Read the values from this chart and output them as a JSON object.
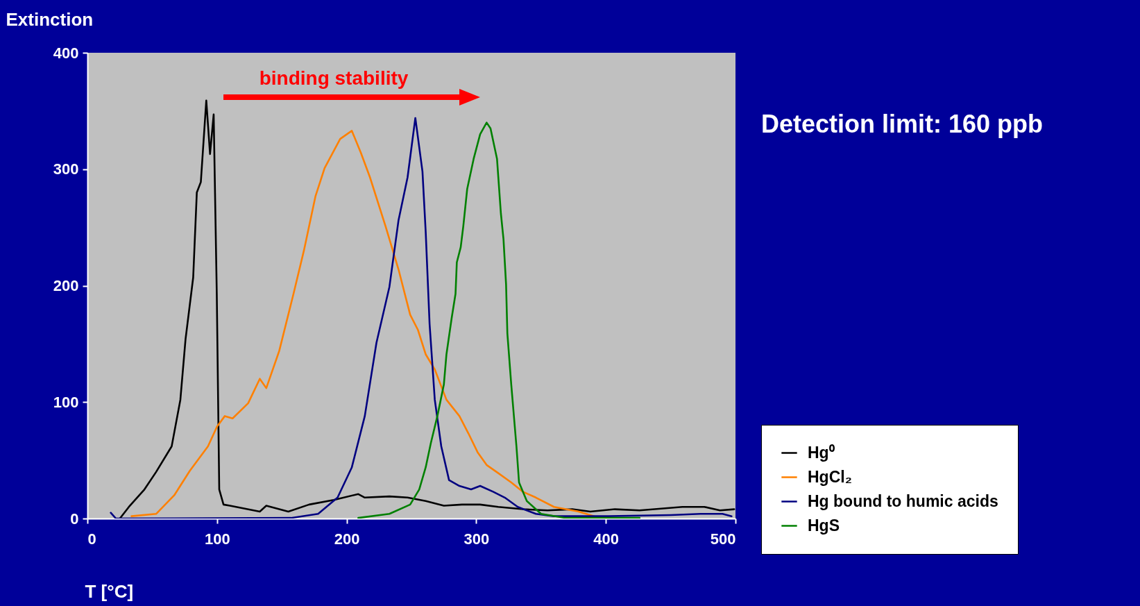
{
  "chart_data": {
    "type": "line",
    "xlabel": "T [°C]",
    "ylabel": "Extinction",
    "xlim": [
      0,
      500
    ],
    "xticks": [
      0,
      100,
      200,
      300,
      400,
      500
    ],
    "ylim": [
      0,
      400
    ],
    "yticks": [
      0,
      100,
      200,
      300,
      400
    ],
    "legend": "bottom right",
    "annotations": [
      "binding stability",
      "Detection limit: 160 ppb"
    ],
    "series": [
      {
        "name": "Hg⁰",
        "color": "#000000",
        "x": [
          25,
          32,
          44,
          53,
          65,
          71.7,
          75.7,
          81.6,
          84.4,
          87.5,
          91.7,
          94.6,
          97.4,
          99.8,
          101.7,
          105,
          110,
          133,
          138,
          155,
          171,
          190,
          209,
          214,
          233,
          247,
          261,
          275,
          289,
          303,
          317,
          336,
          355,
          374,
          388,
          407,
          426,
          459,
          476,
          488,
          499
        ],
        "values": [
          0,
          10,
          25,
          40,
          62,
          102,
          154,
          207,
          280,
          289,
          359,
          313,
          347,
          193,
          25,
          12,
          11,
          6,
          11,
          6,
          12,
          16,
          21,
          18,
          19,
          18,
          15,
          11,
          12,
          12,
          10,
          8,
          7,
          8,
          6,
          8,
          7,
          10,
          10,
          7,
          8
        ]
      },
      {
        "name": "HgCl₂",
        "color": "#ff8000",
        "x": [
          34,
          53,
          67,
          79,
          93,
          100,
          106,
          112,
          124,
          133,
          138,
          148,
          159,
          167,
          176,
          183,
          195,
          204,
          211,
          218,
          230,
          240,
          249,
          255,
          261,
          268,
          277,
          287,
          294,
          301,
          308,
          317,
          327,
          336,
          346,
          360,
          379,
          391
        ],
        "values": [
          2,
          4,
          20,
          41,
          62,
          79,
          88,
          86,
          99,
          120,
          112,
          144,
          193,
          230,
          277,
          301,
          326,
          333,
          314,
          293,
          251,
          214,
          175,
          162,
          141,
          128,
          102,
          88,
          73,
          57,
          46,
          39,
          31,
          23,
          18,
          10,
          6,
          2
        ]
      },
      {
        "name": "Hg bound to humic acids",
        "color": "#000080",
        "x": [
          18,
          22,
          157,
          178,
          193,
          204,
          214,
          223,
          233,
          240,
          247,
          253,
          258.5,
          261,
          264,
          268,
          273,
          279,
          287,
          296,
          303,
          313,
          322,
          332,
          346,
          360,
          402,
          450,
          473,
          490,
          497
        ],
        "values": [
          5,
          0,
          0.5,
          4,
          18,
          44,
          88,
          151,
          199,
          256,
          293,
          344,
          298,
          246,
          167,
          102,
          62,
          33,
          28,
          25,
          28,
          23,
          18,
          10,
          4,
          2,
          2,
          3,
          4,
          4,
          2
        ]
      },
      {
        "name": "HgS",
        "color": "#008000",
        "x": [
          209,
          233,
          249,
          256,
          261,
          265,
          270,
          275,
          277,
          281,
          284,
          285,
          288,
          290,
          293,
          298,
          303,
          308,
          311,
          316,
          319,
          321,
          323,
          324,
          327,
          331,
          333,
          339,
          350,
          369,
          426
        ],
        "values": [
          0.5,
          4,
          12,
          25,
          44,
          65,
          88,
          115,
          141,
          172,
          193,
          220,
          233,
          251,
          283,
          309,
          330,
          340,
          335,
          309,
          262,
          240,
          201,
          159,
          115,
          62,
          31,
          15,
          4,
          0.5,
          0.5
        ]
      }
    ]
  }
}
